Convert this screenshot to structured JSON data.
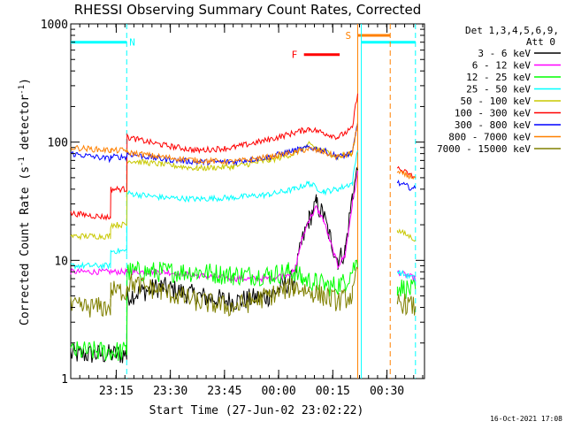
{
  "chart_data": {
    "type": "line",
    "title": "RHESSI Observing Summary Count Rates, Corrected",
    "xlabel": "Start Time (27-Jun-02 23:02:22)",
    "ylabel": "Corrected Count Rate (s",
    "ylabel_sup": "-1",
    "ylabel_tail": " detector",
    "ylabel_tail_sup": "-1",
    "ylabel_close": ")",
    "y_scale": "log",
    "ylim": [
      1,
      1000
    ],
    "xlim_minutes": [
      0,
      98
    ],
    "x_ticks": [
      {
        "minute": 12.6,
        "label": "23:15"
      },
      {
        "minute": 27.6,
        "label": "23:30"
      },
      {
        "minute": 42.6,
        "label": "23:45"
      },
      {
        "minute": 57.6,
        "label": "00:00"
      },
      {
        "minute": 72.6,
        "label": "00:15"
      },
      {
        "minute": 87.6,
        "label": "00:30"
      }
    ],
    "y_ticks": [
      {
        "value": 1,
        "label": "1"
      },
      {
        "value": 10,
        "label": "10"
      },
      {
        "value": 100,
        "label": "100"
      },
      {
        "value": 1000,
        "label": "1000"
      }
    ],
    "legend_header": [
      "Det 1,3,4,5,6,9,",
      "Att 0"
    ],
    "flags": [
      {
        "name": "N",
        "label": "N",
        "color": "#00ffff",
        "segments": [
          [
            0,
            15.5
          ],
          [
            80.5,
            95.5
          ]
        ],
        "y_value": 700
      },
      {
        "name": "F",
        "label": "F",
        "color": "#ff0000",
        "segments": [
          [
            64.6,
            74.5
          ]
        ],
        "y_value": 550
      },
      {
        "name": "S",
        "label": "S",
        "color": "#ff8000",
        "segments": [
          [
            79.5,
            88.5
          ]
        ],
        "y_value": 800
      }
    ],
    "markers": [
      {
        "minute": 15.5,
        "color": "#00ffff",
        "style": "dashed"
      },
      {
        "minute": 79.5,
        "color": "#ff8000",
        "style": "solid"
      },
      {
        "minute": 80.5,
        "color": "#00ffff",
        "style": "solid"
      },
      {
        "minute": 88.5,
        "color": "#ff8000",
        "style": "dashed"
      },
      {
        "minute": 95.5,
        "color": "#00ffff",
        "style": "dashed"
      }
    ],
    "series": [
      {
        "name": "3 - 6 keV",
        "color": "#000000",
        "points": [
          [
            0,
            1.6
          ],
          [
            15.5,
            1.6
          ],
          [
            15.6,
            5
          ],
          [
            25,
            6
          ],
          [
            35,
            5
          ],
          [
            45,
            4.5
          ],
          [
            55,
            5
          ],
          [
            62,
            7
          ],
          [
            64,
            14
          ],
          [
            66,
            22
          ],
          [
            68,
            30
          ],
          [
            70,
            24
          ],
          [
            72,
            15
          ],
          [
            74,
            10
          ],
          [
            76,
            12
          ],
          [
            78,
            35
          ],
          [
            79.5,
            60
          ]
        ]
      },
      {
        "name": "6 - 12 keV",
        "color": "#ff00ff",
        "points": [
          [
            0,
            8
          ],
          [
            15.5,
            8
          ],
          [
            15.6,
            8
          ],
          [
            25,
            8
          ],
          [
            35,
            7.5
          ],
          [
            45,
            7
          ],
          [
            55,
            7
          ],
          [
            62,
            8
          ],
          [
            64,
            15
          ],
          [
            66,
            22
          ],
          [
            68,
            28
          ],
          [
            70,
            22
          ],
          [
            72,
            14
          ],
          [
            74,
            9
          ],
          [
            76,
            11
          ],
          [
            78,
            30
          ],
          [
            79.5,
            55
          ],
          [
            90.5,
            8
          ],
          [
            95.5,
            7
          ]
        ]
      },
      {
        "name": "12 - 25 keV",
        "color": "#00ff00",
        "points": [
          [
            0,
            1.7
          ],
          [
            15.5,
            1.7
          ],
          [
            15.6,
            8
          ],
          [
            25,
            8
          ],
          [
            35,
            8
          ],
          [
            45,
            7.5
          ],
          [
            55,
            7.5
          ],
          [
            60,
            8
          ],
          [
            62,
            8
          ],
          [
            64,
            7
          ],
          [
            68,
            6.5
          ],
          [
            72,
            6
          ],
          [
            76,
            6.5
          ],
          [
            79.5,
            10
          ],
          [
            90.5,
            6
          ],
          [
            95.5,
            5.5
          ]
        ]
      },
      {
        "name": "25 - 50 keV",
        "color": "#00ffff",
        "points": [
          [
            0,
            9
          ],
          [
            11,
            9
          ],
          [
            11.1,
            12
          ],
          [
            15.5,
            12
          ],
          [
            15.6,
            37
          ],
          [
            25,
            34
          ],
          [
            35,
            33
          ],
          [
            45,
            34
          ],
          [
            55,
            36
          ],
          [
            62,
            40
          ],
          [
            66,
            45
          ],
          [
            70,
            38
          ],
          [
            74,
            40
          ],
          [
            78,
            45
          ],
          [
            79.5,
            90
          ],
          [
            90.5,
            8
          ],
          [
            95.5,
            7
          ]
        ]
      },
      {
        "name": "50 - 100 keV",
        "color": "#c8c800",
        "points": [
          [
            0,
            16
          ],
          [
            11,
            16
          ],
          [
            11.1,
            20
          ],
          [
            15.5,
            20
          ],
          [
            15.6,
            70
          ],
          [
            25,
            65
          ],
          [
            35,
            60
          ],
          [
            45,
            62
          ],
          [
            55,
            70
          ],
          [
            62,
            80
          ],
          [
            66,
            95
          ],
          [
            70,
            85
          ],
          [
            74,
            75
          ],
          [
            78,
            80
          ],
          [
            79.5,
            150
          ],
          [
            90.5,
            18
          ],
          [
            95.5,
            15
          ]
        ]
      },
      {
        "name": "100 - 300 keV",
        "color": "#ff0000",
        "points": [
          [
            0,
            25
          ],
          [
            11,
            23
          ],
          [
            11.1,
            40
          ],
          [
            15.5,
            40
          ],
          [
            15.6,
            110
          ],
          [
            25,
            95
          ],
          [
            35,
            85
          ],
          [
            45,
            90
          ],
          [
            55,
            105
          ],
          [
            62,
            120
          ],
          [
            66,
            130
          ],
          [
            70,
            120
          ],
          [
            74,
            110
          ],
          [
            78,
            130
          ],
          [
            79.5,
            270
          ],
          [
            90.5,
            60
          ],
          [
            95.5,
            50
          ]
        ]
      },
      {
        "name": "300 - 800 keV",
        "color": "#0000ff",
        "points": [
          [
            0,
            80
          ],
          [
            11,
            72
          ],
          [
            11.1,
            75
          ],
          [
            15.5,
            75
          ],
          [
            15.6,
            80
          ],
          [
            25,
            72
          ],
          [
            35,
            68
          ],
          [
            45,
            68
          ],
          [
            55,
            75
          ],
          [
            62,
            85
          ],
          [
            66,
            90
          ],
          [
            70,
            85
          ],
          [
            74,
            75
          ],
          [
            78,
            80
          ],
          [
            79.5,
            150
          ],
          [
            90.5,
            45
          ],
          [
            95.5,
            40
          ]
        ]
      },
      {
        "name": "800 - 7000 keV",
        "color": "#ff8000",
        "points": [
          [
            0,
            90
          ],
          [
            11,
            85
          ],
          [
            11.1,
            85
          ],
          [
            15.5,
            85
          ],
          [
            15.6,
            82
          ],
          [
            25,
            75
          ],
          [
            35,
            70
          ],
          [
            45,
            68
          ],
          [
            55,
            75
          ],
          [
            62,
            82
          ],
          [
            66,
            88
          ],
          [
            70,
            82
          ],
          [
            74,
            75
          ],
          [
            78,
            80
          ],
          [
            79.5,
            150
          ],
          [
            90.5,
            55
          ],
          [
            95.5,
            50
          ]
        ]
      },
      {
        "name": "7000 - 15000 keV",
        "color": "#808000",
        "points": [
          [
            0,
            4
          ],
          [
            11,
            4
          ],
          [
            11.1,
            5.5
          ],
          [
            15.5,
            5.5
          ],
          [
            15.6,
            6.5
          ],
          [
            25,
            5.5
          ],
          [
            35,
            4.5
          ],
          [
            45,
            4
          ],
          [
            55,
            5
          ],
          [
            62,
            6
          ],
          [
            66,
            5.5
          ],
          [
            70,
            5
          ],
          [
            74,
            4.5
          ],
          [
            78,
            5
          ],
          [
            79.5,
            8
          ],
          [
            90.5,
            4.5
          ],
          [
            95.5,
            4
          ]
        ]
      }
    ],
    "footer_date": "16-Oct-2021 17:08"
  }
}
